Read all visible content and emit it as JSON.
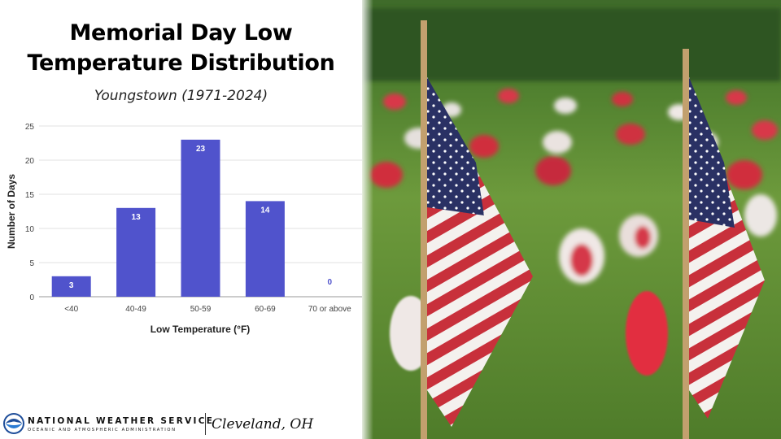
{
  "title": "Memorial Day Low Temperature Distribution",
  "subtitle": "Youngstown (1971-2024)",
  "footer": {
    "agency": "NATIONAL WEATHER SERVICE",
    "agency_sub": "OCEANIC AND ATMOSPHERIC ADMINISTRATION",
    "office": "Cleveland, OH"
  },
  "photo": {
    "description": "American flags on a lawn with red and white flowers",
    "icon": "flag-icon"
  },
  "colors": {
    "bar": "#5053cc",
    "grid": "#e0e0e0",
    "text": "#444444"
  },
  "chart_data": {
    "type": "bar",
    "title": "Memorial Day Low Temperature Distribution",
    "subtitle": "Youngstown (1971-2024)",
    "categories": [
      "<40",
      "40-49",
      "50-59",
      "60-69",
      "70 or above"
    ],
    "values": [
      3,
      13,
      23,
      14,
      0
    ],
    "xlabel": "Low Temperature (°F)",
    "ylabel": "Number of Days",
    "ylim": [
      0,
      25
    ],
    "yticks": [
      0,
      5,
      10,
      15,
      20,
      25
    ],
    "grid": true,
    "legend": "none"
  }
}
